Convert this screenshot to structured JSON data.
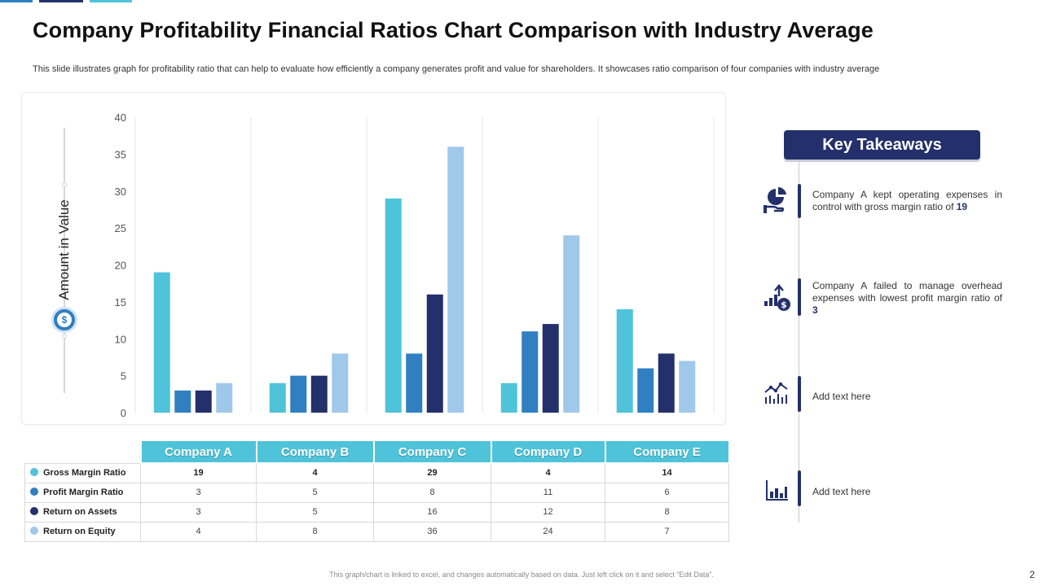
{
  "slide": {
    "title": "Company Profitability Financial Ratios Chart Comparison with Industry Average",
    "subtitle": "This slide illustrates graph for profitability ratio that can help to evaluate how efficiently a company generates profit and value for  shareholders. It showcases ratio comparison of four companies with industry average",
    "footer": "This graph/chart is linked to excel, and changes automatically based on data. Just left click on it and select “Edit Data”.",
    "page_number": "2"
  },
  "colors": {
    "accent_navy": "#23306b",
    "accent_teal": "#4fc3d9",
    "accent_blue": "#2f7fc1"
  },
  "chart_data": {
    "type": "bar",
    "title": "",
    "xlabel": "",
    "ylabel": "Amount in Value",
    "ylabel_icon": "dollar-coin-icon",
    "ylim": [
      0,
      40
    ],
    "yticks": [
      0,
      5,
      10,
      15,
      20,
      25,
      30,
      35,
      40
    ],
    "grid": "vertical category separators",
    "categories": [
      "Company A",
      "Company B",
      "Company C",
      "Company D",
      "Company E"
    ],
    "series": [
      {
        "name": "Gross Margin Ratio",
        "color": "#4fc3d9",
        "values": [
          19,
          4,
          29,
          4,
          14
        ]
      },
      {
        "name": "Profit Margin Ratio",
        "color": "#2f7fc1",
        "values": [
          3,
          5,
          8,
          11,
          6
        ]
      },
      {
        "name": "Return on Assets",
        "color": "#23306b",
        "values": [
          3,
          5,
          16,
          12,
          8
        ]
      },
      {
        "name": "Return on Equity",
        "color": "#9fc8ea",
        "values": [
          4,
          8,
          36,
          24,
          7
        ]
      }
    ],
    "bold_series": "Gross Margin Ratio"
  },
  "takeaways": {
    "header": "Key Takeaways",
    "items": [
      {
        "icon": "pie-chart-hand-icon",
        "text": "Company A kept operating expenses in control with gross margin ratio of ",
        "highlight": "19"
      },
      {
        "icon": "growth-chart-dollar-icon",
        "text": "Company A failed to manage overhead expenses with lowest profit margin ratio of ",
        "highlight": "3"
      },
      {
        "icon": "line-bar-chart-icon",
        "text": "Add text here",
        "highlight": ""
      },
      {
        "icon": "bar-chart-icon",
        "text": "Add text here",
        "highlight": ""
      }
    ]
  }
}
